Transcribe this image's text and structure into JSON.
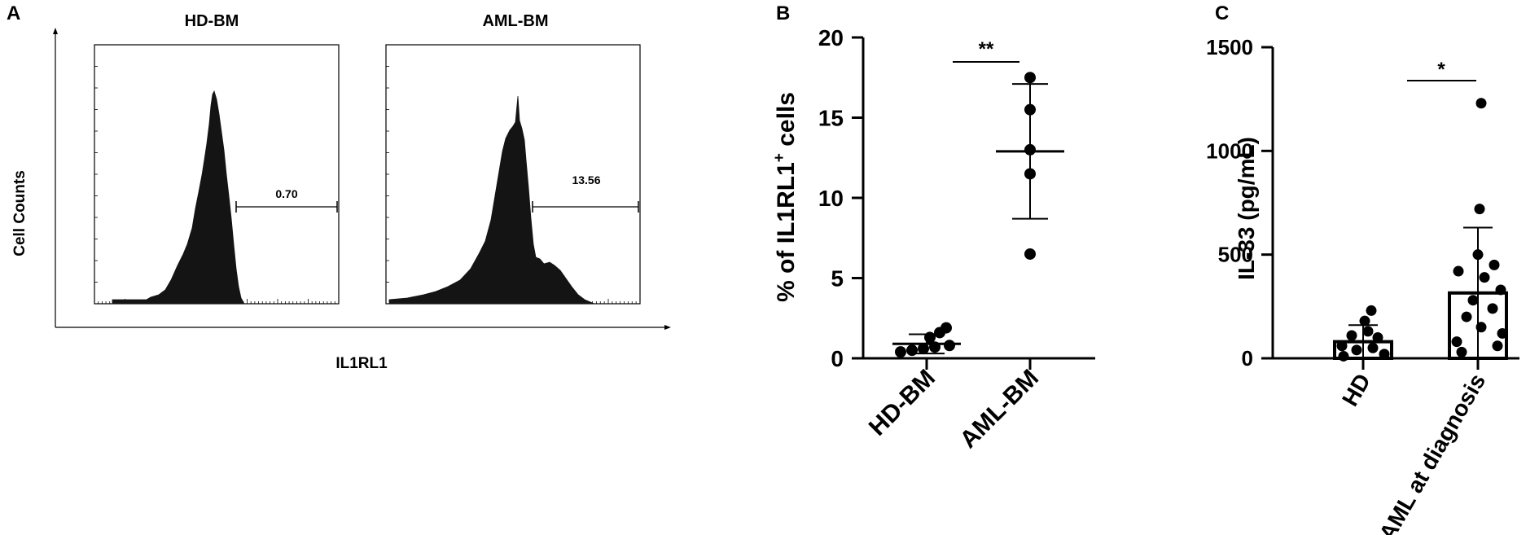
{
  "panels": {
    "a": {
      "letter": "A"
    },
    "b": {
      "letter": "B"
    },
    "c": {
      "letter": "C"
    }
  },
  "chart_data": [
    {
      "type": "histogram",
      "panel": "A",
      "ylabel": "Cell Counts",
      "xlabel": "IL1RL1",
      "subplots": [
        {
          "title": "HD-BM",
          "gate_label": "0.70"
        },
        {
          "title": "AML-BM",
          "gate_label": "13.56"
        }
      ]
    },
    {
      "type": "scatter",
      "panel": "B",
      "categories": [
        "HD-BM",
        "AML-BM"
      ],
      "ylabel_main": "% of IL1RL1",
      "ylabel_sup": "+",
      "ylabel_tail": " cells",
      "ylim": [
        0,
        20
      ],
      "yticks": [
        "0",
        "5",
        "10",
        "15",
        "20"
      ],
      "ytick_values": [
        0,
        5,
        10,
        15,
        20
      ],
      "series": [
        {
          "category": "HD-BM",
          "points": [
            0.4,
            0.5,
            0.6,
            0.7,
            0.8,
            1.3,
            1.6,
            1.9
          ],
          "mean": 0.9,
          "sd": 0.6
        },
        {
          "category": "AML-BM",
          "points": [
            6.5,
            11.5,
            13.0,
            15.5,
            17.5
          ],
          "mean": 12.9,
          "sd": 4.2
        }
      ],
      "significance": "**"
    },
    {
      "type": "bar",
      "panel": "C",
      "categories": [
        "HD",
        "AML at diagnosis"
      ],
      "ylabel": "IL-33 (pg/mL)",
      "ylim": [
        0,
        1500
      ],
      "yticks": [
        "0",
        "500",
        "1000",
        "1500"
      ],
      "ytick_values": [
        0,
        500,
        1000,
        1500
      ],
      "series": [
        {
          "category": "HD",
          "mean": 80,
          "sd": 80,
          "points": [
            10,
            20,
            40,
            50,
            60,
            100,
            110,
            130,
            180,
            230
          ]
        },
        {
          "category": "AML at diagnosis",
          "mean": 315,
          "sd": 315,
          "points": [
            30,
            60,
            80,
            120,
            150,
            200,
            240,
            280,
            330,
            390,
            420,
            450,
            500,
            720,
            1230
          ]
        }
      ],
      "significance": "*"
    }
  ]
}
